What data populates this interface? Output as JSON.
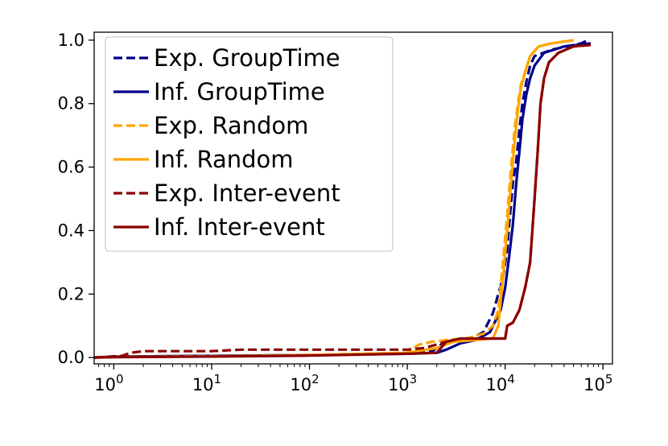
{
  "chart_data": {
    "type": "line",
    "title": "",
    "xlabel": "",
    "ylabel": "",
    "xscale": "log",
    "xlim": [
      0.63,
      125000
    ],
    "ylim": [
      -0.02,
      1.025
    ],
    "grid": false,
    "legend_position": "top-left",
    "x_ticks": [
      {
        "value": 1,
        "base": "10",
        "exp": "0"
      },
      {
        "value": 10,
        "base": "10",
        "exp": "1"
      },
      {
        "value": 100,
        "base": "10",
        "exp": "2"
      },
      {
        "value": 1000,
        "base": "10",
        "exp": "3"
      },
      {
        "value": 10000,
        "base": "10",
        "exp": "4"
      },
      {
        "value": 100000,
        "base": "10",
        "exp": "5"
      }
    ],
    "y_ticks": [
      {
        "value": 0.0,
        "label": "0.0"
      },
      {
        "value": 0.2,
        "label": "0.2"
      },
      {
        "value": 0.4,
        "label": "0.4"
      },
      {
        "value": 0.6,
        "label": "0.6"
      },
      {
        "value": 0.8,
        "label": "0.8"
      },
      {
        "value": 1.0,
        "label": "1.0"
      }
    ],
    "series": [
      {
        "name": "Exp. GroupTime",
        "color": "#00008b",
        "dash": "dashed",
        "points": [
          [
            0.63,
            0
          ],
          [
            1,
            0.003
          ],
          [
            10,
            0.005
          ],
          [
            100,
            0.008
          ],
          [
            1000,
            0.015
          ],
          [
            1800,
            0.02
          ],
          [
            2200,
            0.04
          ],
          [
            3000,
            0.05
          ],
          [
            4500,
            0.06
          ],
          [
            6000,
            0.08
          ],
          [
            7500,
            0.14
          ],
          [
            8500,
            0.2
          ],
          [
            9500,
            0.25
          ],
          [
            10500,
            0.34
          ],
          [
            11000,
            0.42
          ],
          [
            12000,
            0.55
          ],
          [
            13000,
            0.62
          ],
          [
            14000,
            0.72
          ],
          [
            15000,
            0.8
          ],
          [
            16500,
            0.87
          ],
          [
            18000,
            0.92
          ],
          [
            20000,
            0.95
          ],
          [
            30000,
            0.97
          ],
          [
            60000,
            0.99
          ],
          [
            70000,
            1.0
          ]
        ]
      },
      {
        "name": "Inf. GroupTime",
        "color": "#00008b",
        "dash": "solid",
        "points": [
          [
            0.63,
            0
          ],
          [
            1,
            0.003
          ],
          [
            10,
            0.005
          ],
          [
            100,
            0.008
          ],
          [
            1000,
            0.012
          ],
          [
            2000,
            0.015
          ],
          [
            2500,
            0.025
          ],
          [
            3500,
            0.045
          ],
          [
            5000,
            0.055
          ],
          [
            7000,
            0.08
          ],
          [
            9000,
            0.15
          ],
          [
            10000,
            0.22
          ],
          [
            11000,
            0.32
          ],
          [
            12000,
            0.42
          ],
          [
            13000,
            0.55
          ],
          [
            14000,
            0.65
          ],
          [
            15000,
            0.75
          ],
          [
            16500,
            0.83
          ],
          [
            18000,
            0.88
          ],
          [
            20000,
            0.92
          ],
          [
            25000,
            0.96
          ],
          [
            40000,
            0.98
          ],
          [
            75000,
            0.99
          ]
        ]
      },
      {
        "name": "Exp. Random",
        "color": "#ffa500",
        "dash": "dashed",
        "points": [
          [
            0.63,
            0
          ],
          [
            1,
            0.002
          ],
          [
            10,
            0.004
          ],
          [
            100,
            0.008
          ],
          [
            1000,
            0.015
          ],
          [
            1300,
            0.04
          ],
          [
            1800,
            0.05
          ],
          [
            2500,
            0.055
          ],
          [
            4000,
            0.06
          ],
          [
            6000,
            0.075
          ],
          [
            7500,
            0.1
          ],
          [
            8500,
            0.15
          ],
          [
            9500,
            0.3
          ],
          [
            10500,
            0.45
          ],
          [
            11500,
            0.6
          ],
          [
            12500,
            0.72
          ],
          [
            13500,
            0.8
          ],
          [
            14500,
            0.86
          ],
          [
            16000,
            0.9
          ],
          [
            18000,
            0.95
          ],
          [
            22000,
            0.98
          ],
          [
            30000,
            0.99
          ],
          [
            50000,
            1.0
          ]
        ]
      },
      {
        "name": "Inf. Random",
        "color": "#ffa500",
        "dash": "solid",
        "points": [
          [
            0.63,
            0
          ],
          [
            1,
            0.002
          ],
          [
            10,
            0.003
          ],
          [
            100,
            0.008
          ],
          [
            1000,
            0.015
          ],
          [
            2000,
            0.03
          ],
          [
            3000,
            0.05
          ],
          [
            5000,
            0.055
          ],
          [
            7500,
            0.06
          ],
          [
            8500,
            0.1
          ],
          [
            9500,
            0.25
          ],
          [
            10500,
            0.4
          ],
          [
            11500,
            0.55
          ],
          [
            12500,
            0.68
          ],
          [
            13500,
            0.78
          ],
          [
            14500,
            0.85
          ],
          [
            16000,
            0.9
          ],
          [
            18000,
            0.95
          ],
          [
            22000,
            0.98
          ],
          [
            30000,
            0.99
          ],
          [
            50000,
            1.0
          ]
        ]
      },
      {
        "name": "Exp. Inter-event",
        "color": "#8b0000",
        "dash": "dashed",
        "points": [
          [
            0.63,
            0
          ],
          [
            1.2,
            0.005
          ],
          [
            1.5,
            0.015
          ],
          [
            2,
            0.02
          ],
          [
            10,
            0.02
          ],
          [
            20,
            0.025
          ],
          [
            100,
            0.025
          ],
          [
            1000,
            0.025
          ],
          [
            1500,
            0.03
          ],
          [
            2500,
            0.05
          ],
          [
            3500,
            0.06
          ],
          [
            10000,
            0.06
          ],
          [
            10500,
            0.1
          ],
          [
            12000,
            0.11
          ],
          [
            14000,
            0.15
          ],
          [
            16000,
            0.22
          ],
          [
            18000,
            0.3
          ],
          [
            20000,
            0.5
          ],
          [
            21500,
            0.65
          ],
          [
            23000,
            0.8
          ],
          [
            25000,
            0.88
          ],
          [
            28000,
            0.93
          ],
          [
            35000,
            0.96
          ],
          [
            50000,
            0.98
          ],
          [
            75000,
            0.985
          ]
        ]
      },
      {
        "name": "Inf. Inter-event",
        "color": "#8b0000",
        "dash": "solid",
        "points": [
          [
            0.63,
            0
          ],
          [
            1,
            0.001
          ],
          [
            10,
            0.003
          ],
          [
            100,
            0.006
          ],
          [
            1000,
            0.012
          ],
          [
            2000,
            0.015
          ],
          [
            2500,
            0.05
          ],
          [
            3500,
            0.06
          ],
          [
            10000,
            0.06
          ],
          [
            10500,
            0.1
          ],
          [
            12000,
            0.11
          ],
          [
            14000,
            0.15
          ],
          [
            16000,
            0.22
          ],
          [
            18000,
            0.3
          ],
          [
            20000,
            0.5
          ],
          [
            21500,
            0.65
          ],
          [
            23000,
            0.8
          ],
          [
            25000,
            0.88
          ],
          [
            28000,
            0.93
          ],
          [
            35000,
            0.96
          ],
          [
            50000,
            0.98
          ],
          [
            75000,
            0.985
          ]
        ]
      }
    ]
  }
}
